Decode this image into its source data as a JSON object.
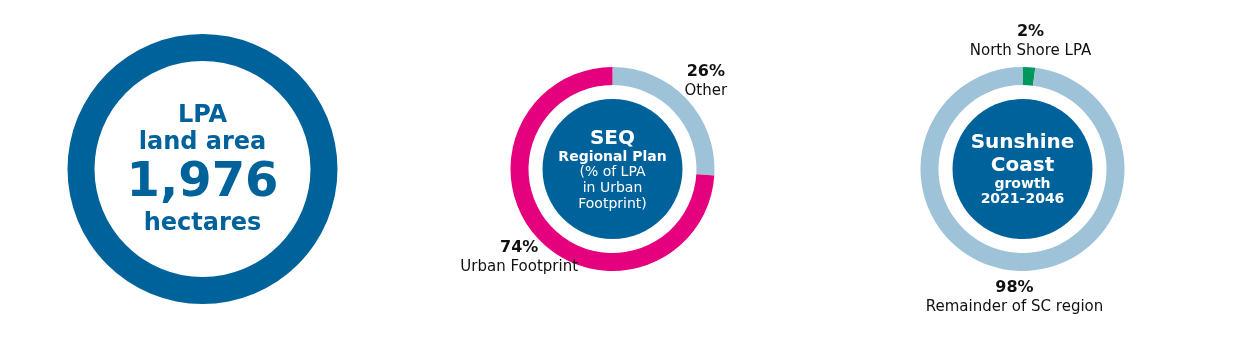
{
  "chart_data": [
    {
      "type": "other",
      "title": "LPA\nland area",
      "annotations": [
        "1,976",
        "hectares"
      ]
    },
    {
      "type": "donut",
      "title": "SEQ",
      "subtitle": "Regional Plan",
      "annotations": [
        "(% of LPA\nin Urban\nFootprint)"
      ],
      "categories": [
        "Other",
        "Urban Footprint"
      ],
      "values": [
        26,
        74
      ],
      "colors": [
        "#9ec3d8",
        "#e5007d"
      ],
      "value_labels": [
        "26%",
        "74%"
      ]
    },
    {
      "type": "donut",
      "title": "Sunshine\nCoast",
      "subtitle": "growth\n2021-2046",
      "categories": [
        "North Shore LPA",
        "Remainder of SC region"
      ],
      "values": [
        2,
        98
      ],
      "colors": [
        "#00975f",
        "#9ec3d8"
      ],
      "value_labels": [
        "2%",
        "98%"
      ]
    }
  ]
}
